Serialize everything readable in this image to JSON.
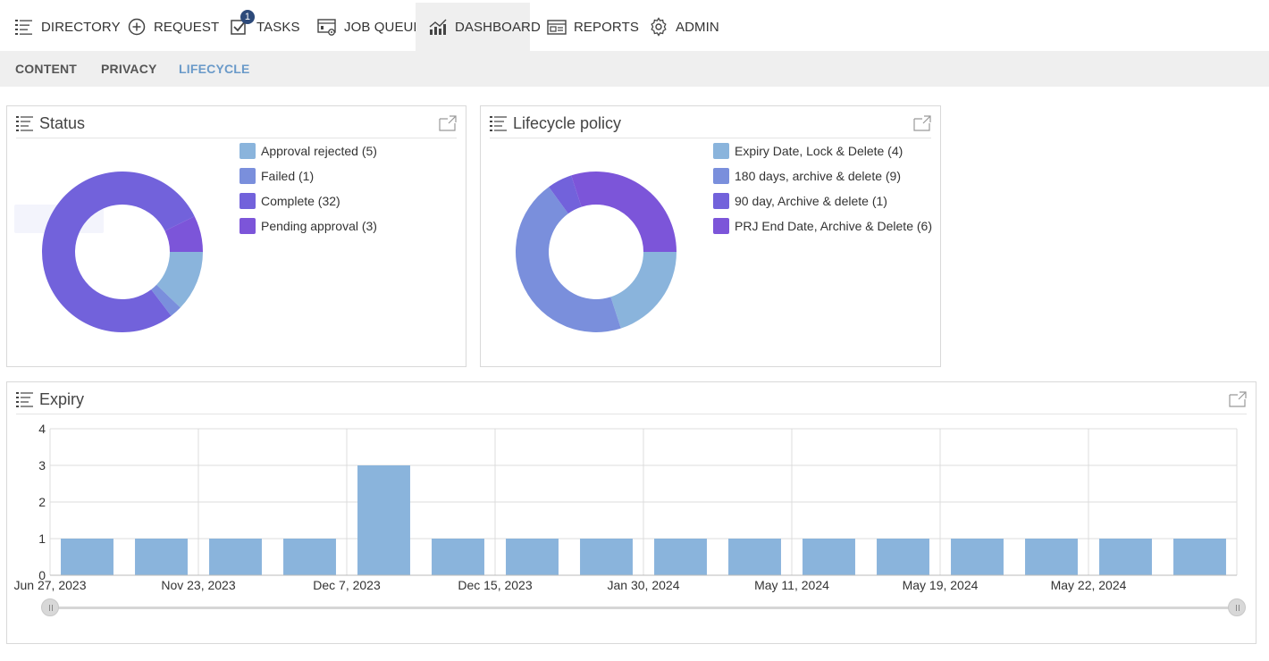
{
  "nav": {
    "items": [
      {
        "label": "DIRECTORY",
        "icon": "list-icon"
      },
      {
        "label": "REQUEST",
        "icon": "plus-circle-icon"
      },
      {
        "label": "TASKS",
        "icon": "checkbox-icon",
        "badge": "1"
      },
      {
        "label": "JOB QUEUE",
        "icon": "job-queue-icon"
      },
      {
        "label": "DASHBOARD",
        "icon": "bar-chart-icon",
        "active": true
      },
      {
        "label": "REPORTS",
        "icon": "reports-icon"
      },
      {
        "label": "ADMIN",
        "icon": "gear-icon"
      }
    ]
  },
  "subnav": {
    "items": [
      {
        "label": "CONTENT"
      },
      {
        "label": "PRIVACY"
      },
      {
        "label": "LIFECYCLE",
        "active": true
      }
    ]
  },
  "status_panel": {
    "title": "Status",
    "legend": [
      {
        "label": "Approval rejected (5)",
        "color": "#8ab4dc"
      },
      {
        "label": "Failed (1)",
        "color": "#7a8fdc"
      },
      {
        "label": "Complete (32)",
        "color": "#7262db"
      },
      {
        "label": "Pending approval (3)",
        "color": "#7c55d9"
      }
    ]
  },
  "lifecycle_panel": {
    "title": "Lifecycle policy",
    "legend": [
      {
        "label": "Expiry Date, Lock & Delete (4)",
        "color": "#8ab4dc"
      },
      {
        "label": "180 days, archive & delete (9)",
        "color": "#7a8fdc"
      },
      {
        "label": "90 day, Archive & delete (1)",
        "color": "#7262db"
      },
      {
        "label": "PRJ End Date, Archive & Delete (6)",
        "color": "#7c55d9"
      }
    ]
  },
  "expiry_panel": {
    "title": "Expiry"
  },
  "chart_data": [
    {
      "type": "pie",
      "title": "Status",
      "donut": true,
      "categories": [
        "Approval rejected",
        "Failed",
        "Complete",
        "Pending approval"
      ],
      "values": [
        5,
        1,
        32,
        3
      ],
      "colors": [
        "#8ab4dc",
        "#7a8fdc",
        "#7262db",
        "#7c55d9"
      ]
    },
    {
      "type": "pie",
      "title": "Lifecycle policy",
      "donut": true,
      "categories": [
        "Expiry Date, Lock & Delete",
        "180 days, archive & delete",
        "90 day, Archive & delete",
        "PRJ End Date, Archive & Delete"
      ],
      "values": [
        4,
        9,
        1,
        6
      ],
      "colors": [
        "#8ab4dc",
        "#7a8fdc",
        "#7262db",
        "#7c55d9"
      ]
    },
    {
      "type": "bar",
      "title": "Expiry",
      "values": [
        1,
        1,
        1,
        1,
        3,
        1,
        1,
        1,
        1,
        1,
        1,
        1,
        1,
        1,
        1,
        1
      ],
      "x_tick_labels": [
        "Jun 27, 2023",
        "Nov 23, 2023",
        "Dec 7, 2023",
        "Dec 15, 2023",
        "Jan 30, 2024",
        "May 11, 2024",
        "May 19, 2024",
        "May 22, 2024"
      ],
      "yticks": [
        "0",
        "1",
        "2",
        "3",
        "4"
      ],
      "ylim": [
        0,
        4
      ],
      "grid": true,
      "bar_color": "#8ab4dc"
    }
  ]
}
